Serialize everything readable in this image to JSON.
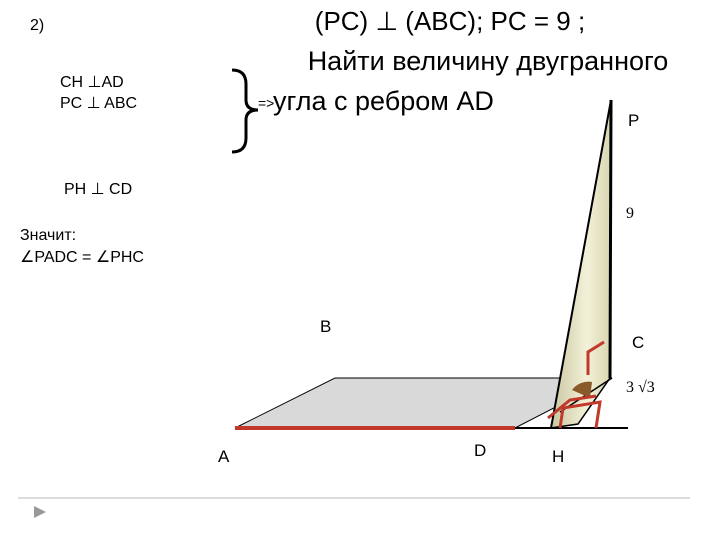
{
  "slide": {
    "number": "2)",
    "statement": "(PC) ⊥ (ABC); PC = 9 ;",
    "task_line_1": "Найти величину двугранного",
    "task_line_2": "угла с ребром AD",
    "implies": "=>",
    "facts": [
      "CH ⊥AD",
      "PC ⊥ ABC"
    ],
    "fact_ph": "PH ⊥ CD",
    "conclusion_label": "Значит:",
    "conclusion": "∠PADC = ∠PHC"
  },
  "figure": {
    "points": {
      "P": "P",
      "B": "B",
      "C": "C",
      "A": "A",
      "D": "D",
      "H": "H"
    },
    "pc_length": "9",
    "ch_length": "3 √3"
  }
}
